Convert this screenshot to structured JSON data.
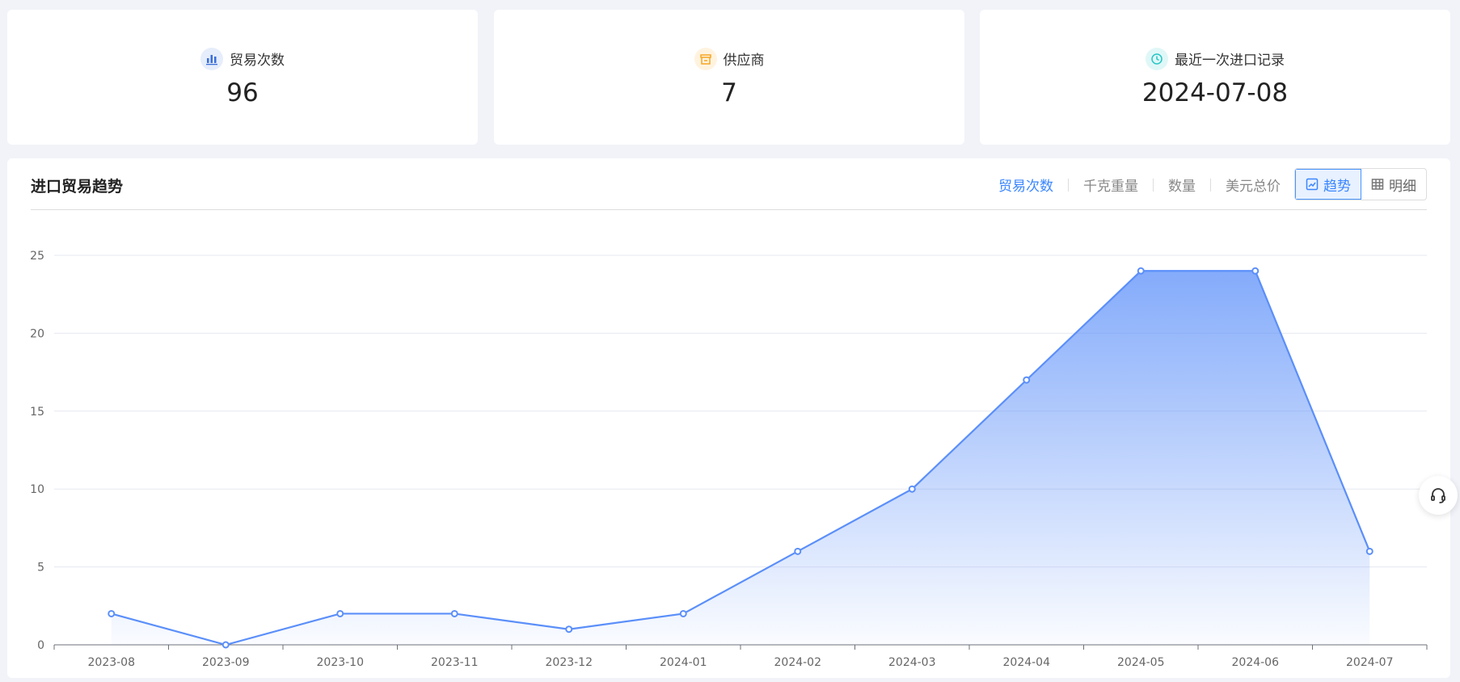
{
  "stats": [
    {
      "label": "贸易次数",
      "value": "96",
      "icon": "bar-chart-icon",
      "color": "#3a6fd8",
      "bg": "#e6edfb"
    },
    {
      "label": "供应商",
      "value": "7",
      "icon": "store-icon",
      "color": "#f5a623",
      "bg": "#fff3e0"
    },
    {
      "label": "最近一次进口记录",
      "value": "2024-07-08",
      "icon": "clock-icon",
      "color": "#26c6c6",
      "bg": "#e0f7f7"
    }
  ],
  "panel": {
    "title": "进口贸易趋势",
    "tabs": [
      "贸易次数",
      "千克重量",
      "数量",
      "美元总价"
    ],
    "active_tab": "贸易次数",
    "view_buttons": [
      {
        "label": "趋势",
        "icon": "trend-chart-icon"
      },
      {
        "label": "明细",
        "icon": "table-icon"
      }
    ],
    "active_view": "趋势"
  },
  "chart_data": {
    "type": "area",
    "categories": [
      "2023-08",
      "2023-09",
      "2023-10",
      "2023-11",
      "2023-12",
      "2024-01",
      "2024-02",
      "2024-03",
      "2024-04",
      "2024-05",
      "2024-06",
      "2024-07"
    ],
    "values": [
      2,
      0,
      2,
      2,
      1,
      2,
      6,
      10,
      17,
      24,
      24,
      6
    ],
    "yticks": [
      0,
      5,
      10,
      15,
      20,
      25
    ],
    "ylim": [
      0,
      25
    ],
    "grid": true,
    "color": "#5b8ff9"
  }
}
